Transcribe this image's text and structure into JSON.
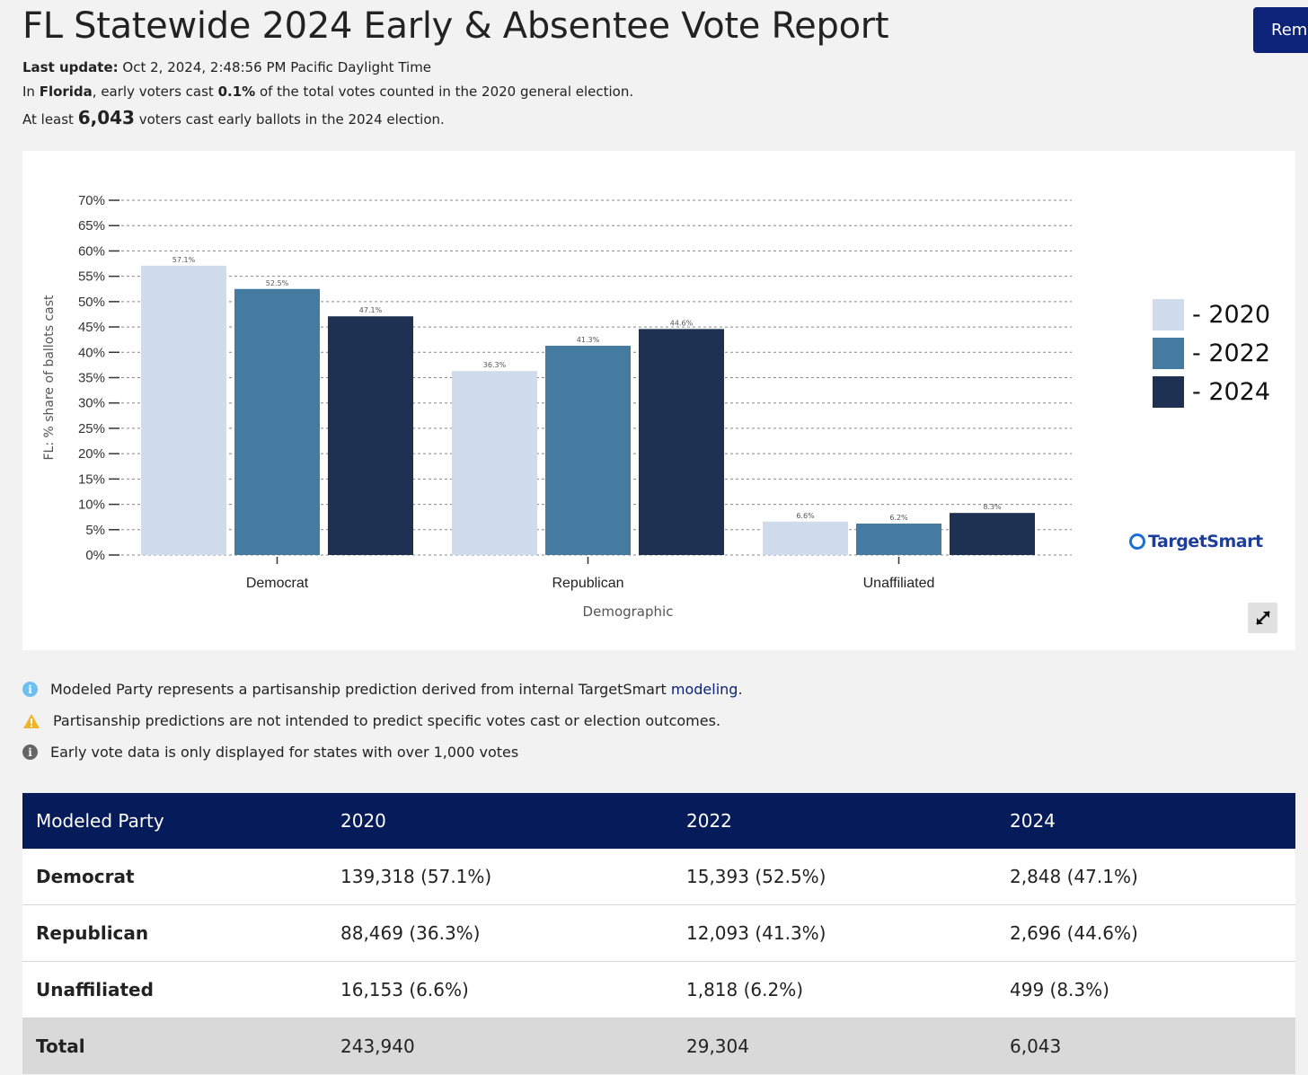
{
  "header": {
    "title": "FL Statewide 2024 Early & Absentee Vote Report",
    "button_label": "Rem",
    "last_update_label": "Last update:",
    "last_update_value": "Oct 2, 2024, 2:48:56 PM Pacific Daylight Time",
    "line2_a": "In ",
    "line2_state": "Florida",
    "line2_b": ", early voters cast ",
    "line2_pct": "0.1%",
    "line2_c": " of the total votes counted in the 2020 general election.",
    "line3_a": "At least ",
    "line3_num": "6,043",
    "line3_b": " voters cast early ballots in the 2024 election."
  },
  "chart_data": {
    "type": "bar",
    "categories": [
      "Democrat",
      "Republican",
      "Unaffiliated"
    ],
    "series": [
      {
        "name": "2020",
        "values": [
          57.1,
          36.3,
          6.6
        ],
        "color": "#d0dceb"
      },
      {
        "name": "2022",
        "values": [
          52.5,
          41.3,
          6.2
        ],
        "color": "#457ba0"
      },
      {
        "name": "2024",
        "values": [
          47.1,
          44.6,
          8.3
        ],
        "color": "#1f3152"
      }
    ],
    "xlabel": "Demographic",
    "ylabel": "FL: % share of ballots cast",
    "ylim": [
      0,
      70
    ],
    "yticks": [
      0,
      5,
      10,
      15,
      20,
      25,
      30,
      35,
      40,
      45,
      50,
      55,
      60,
      65,
      70
    ],
    "grid": true,
    "legend_position": "right",
    "legend_labels": [
      "- 2020",
      "- 2022",
      "- 2024"
    ]
  },
  "brand": "TargetSmart",
  "icons": {
    "expand": "expand-icon",
    "info": "info-icon",
    "warning": "warning-icon"
  },
  "notes": {
    "note1_text": "Modeled Party represents a partisanship prediction derived from internal TargetSmart ",
    "note1_link": "modeling",
    "note1_end": ".",
    "note2_text": "Partisanship predictions are not intended to predict specific votes cast or election outcomes.",
    "note3_text": "Early vote data is only displayed for states with over 1,000 votes"
  },
  "table": {
    "headers": [
      "Modeled Party",
      "2020",
      "2022",
      "2024"
    ],
    "rows": [
      [
        "Democrat",
        "139,318 (57.1%)",
        "15,393 (52.5%)",
        "2,848 (47.1%)"
      ],
      [
        "Republican",
        "88,469 (36.3%)",
        "12,093 (41.3%)",
        "2,696 (44.6%)"
      ],
      [
        "Unaffiliated",
        "16,153 (6.6%)",
        "1,818 (6.2%)",
        "499 (8.3%)"
      ]
    ],
    "total": [
      "Total",
      "243,940",
      "29,304",
      "6,043"
    ]
  }
}
